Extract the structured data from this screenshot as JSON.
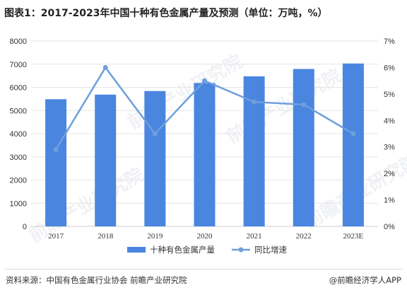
{
  "title": "图表1：2017-2023年中国十种有色金属产量及预测（单位：万吨，%）",
  "watermark": "前瞻产业研究院",
  "footer": {
    "source": "资料来源：中国有色金属行业协会 前瞻产业研究院",
    "brand": "@前瞻经济学人APP"
  },
  "colors": {
    "bar": "#4a86e0",
    "line": "#6e9fdc",
    "grid": "#e6e6e6",
    "axis_text": "#333333"
  },
  "chart_data": {
    "type": "bar",
    "categories": [
      "2017",
      "2018",
      "2019",
      "2020",
      "2021",
      "2022",
      "2023E"
    ],
    "series": [
      {
        "name": "十种有色金属产量",
        "type": "bar",
        "axis": "left",
        "values": [
          5490,
          5688,
          5842,
          6188,
          6477,
          6793,
          7030
        ]
      },
      {
        "name": "同比增速",
        "type": "line",
        "axis": "right",
        "values": [
          2.9,
          6.0,
          3.5,
          5.5,
          4.7,
          4.6,
          3.5
        ]
      }
    ],
    "y_left": {
      "min": 0,
      "max": 8000,
      "ticks": [
        "0",
        "1000",
        "2000",
        "3000",
        "4000",
        "5000",
        "6000",
        "7000",
        "8000"
      ]
    },
    "y_right": {
      "min": 0,
      "max": 7,
      "ticks": [
        "0%",
        "1%",
        "2%",
        "3%",
        "4%",
        "5%",
        "6%",
        "7%"
      ]
    },
    "grid": true,
    "legend_position": "bottom"
  }
}
